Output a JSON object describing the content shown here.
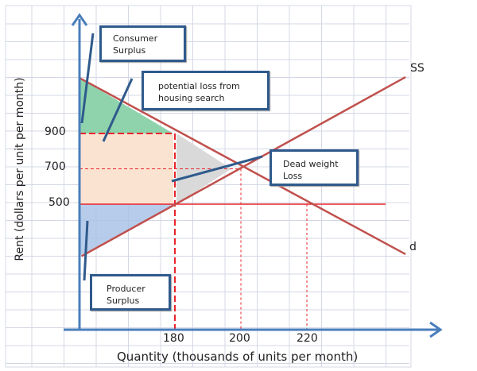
{
  "chart_data": {
    "type": "line",
    "title": "",
    "xlabel": "Quantity (thousands of units per month)",
    "ylabel": "Rent (dollars per unit per month)",
    "x_ticks": [
      "180",
      "200",
      "220"
    ],
    "y_ticks": [
      "900",
      "700",
      "500"
    ],
    "series": [
      {
        "name": "SS",
        "points": [
          [
            151.7,
            206
          ],
          [
            249.9,
            1219
          ]
        ],
        "color": "#c0504d"
      },
      {
        "name": "d",
        "points": [
          [
            151.0,
            1215
          ],
          [
            249.9,
            217
          ]
        ],
        "color": "#c0504d"
      }
    ],
    "rent_ceiling": 500,
    "equilibrium": {
      "quantity": 200,
      "rent": 700
    },
    "ceiling_quantity_supplied": 180,
    "ceiling_quantity_demanded": 220,
    "black_market_rent": 900,
    "grid": true
  },
  "callouts": {
    "consumer_surplus": [
      "Consumer",
      "Surplus"
    ],
    "potential_loss": [
      "potential loss from",
      "housing  search"
    ],
    "deadweight": [
      "Dead weight",
      "Loss"
    ],
    "producer_surplus": [
      "Producer",
      "Surplus"
    ]
  },
  "colors": {
    "consumer": "#8fd3ad",
    "potential": "#fbe3d2",
    "deadweight": "#d9d9d9",
    "producer": "#a9c3e6",
    "axis": "#4a7ebb",
    "curve": "#c0504d",
    "ceiling": "#e8232a"
  }
}
